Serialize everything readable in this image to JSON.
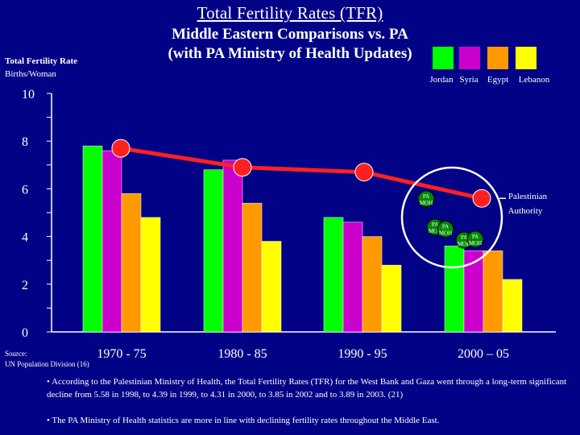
{
  "header": {
    "title": "Total Fertility Rates (TFR)",
    "subtitle_line1": "Middle Eastern Comparisons vs. PA",
    "subtitle_line2": "(with PA Ministry of Health Updates)"
  },
  "axis_label": {
    "line1": "Total Fertility Rate",
    "line2": "Births/Woman"
  },
  "source": {
    "label": "Source:",
    "text": "UN Population Division (16)"
  },
  "notes": [
    "• According to the Palestinian Ministry of Health, the Total Fertility Rates (TFR) for the West Bank and Gaza went through a long-term significant decline from 5.58 in 1998, to 4.39 in 1999, to 4.31 in 2000, to 3.85 in 2002 and to 3.89 in 2003. (21)",
    "• The PA Ministry of Health statistics are more in line with declining fertility rates throughout the Middle East."
  ],
  "chart_data": {
    "type": "bar",
    "title": "Total Fertility Rates (TFR)",
    "ylabel": "Total Fertility Rate Births/Woman",
    "ylim": [
      0,
      10
    ],
    "yticks": [
      "0",
      "2",
      "4",
      "6",
      "8",
      "10"
    ],
    "categories": [
      "1970 - 75",
      "1980 - 85",
      "1990 - 95",
      "2000 – 05"
    ],
    "series": [
      {
        "name": "Jordan",
        "color": "#00ff00",
        "values": [
          7.8,
          6.8,
          4.8,
          3.6
        ]
      },
      {
        "name": "Syria",
        "color": "#cc00cc",
        "values": [
          7.6,
          7.2,
          4.6,
          3.4
        ]
      },
      {
        "name": "Egypt",
        "color": "#ff9900",
        "values": [
          5.8,
          5.4,
          4.0,
          3.4
        ]
      },
      {
        "name": "Lebanon",
        "color": "#ffff00",
        "values": [
          4.8,
          3.8,
          2.8,
          2.2
        ]
      }
    ],
    "line": {
      "name": "Palestinian Authority",
      "color": "#ff2020",
      "values": [
        7.7,
        6.9,
        6.7,
        5.6
      ]
    },
    "moh_points": [
      {
        "label": "PA MOH",
        "value": 5.58
      },
      {
        "label": "PA MOH",
        "value": 4.39
      },
      {
        "label": "PA MOH",
        "value": 4.31
      },
      {
        "label": "PA MOH",
        "value": 3.85
      },
      {
        "label": "PA MOH",
        "value": 3.89
      }
    ],
    "highlight": "Ministry of Health updates circled around 1990s–2000s"
  }
}
